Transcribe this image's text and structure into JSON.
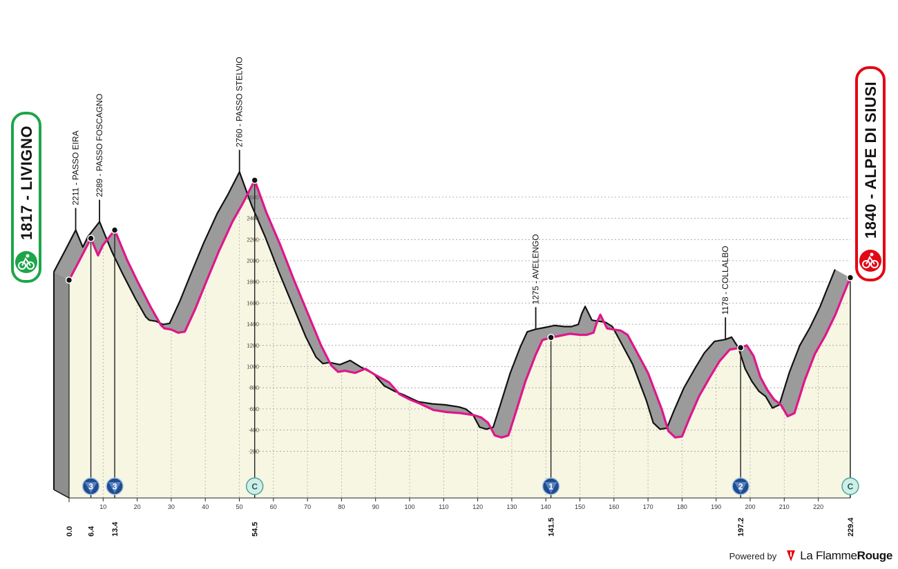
{
  "chart_data": {
    "type": "area",
    "title": "",
    "xlabel": "",
    "ylabel": "",
    "xlim": [
      0,
      229.4
    ],
    "ylim": [
      0,
      2800
    ],
    "grid": true,
    "y_ticks": [
      200,
      400,
      600,
      800,
      1000,
      1200,
      1400,
      1600,
      1800,
      2000,
      2200,
      2400,
      2600
    ],
    "x_ticks": [
      0,
      10,
      20,
      30,
      40,
      50,
      60,
      70,
      80,
      90,
      100,
      110,
      120,
      130,
      140,
      150,
      160,
      170,
      180,
      190,
      200,
      210,
      220
    ],
    "x_tick_labels": [
      "0",
      "10",
      "20",
      "30",
      "40",
      "50",
      "60",
      "70",
      "80",
      "90",
      "100",
      "110",
      "120",
      "130",
      "140",
      "150",
      "160",
      "170",
      "180",
      "190",
      "200",
      "210",
      "220"
    ],
    "start": {
      "name": "LIVIGNO",
      "elevation": "1817",
      "label": "1817 - LIVIGNO",
      "icon": "cyclist-start-icon",
      "color": "#1ea54a"
    },
    "finish": {
      "name": "ALPE DI SIUSI",
      "elevation": "1840",
      "label": "1840 - ALPE DI SIUSI",
      "icon": "cyclist-finish-icon",
      "color": "#e30613"
    },
    "climbs": [
      {
        "km": 6.4,
        "km_label": "6.4",
        "elevation": 2211,
        "label": "2211 - PASSO EIRA",
        "category": "3"
      },
      {
        "km": 13.4,
        "km_label": "13.4",
        "elevation": 2289,
        "label": "2289 - PASSO FOSCAGNO",
        "category": "3"
      },
      {
        "km": 54.5,
        "km_label": "54.5",
        "elevation": 2760,
        "label": "2760 - PASSO STELVIO",
        "category": "C"
      },
      {
        "km": 141.5,
        "km_label": "141.5",
        "elevation": 1275,
        "label": "1275 - AVELENGO",
        "category": "1"
      },
      {
        "km": 197.2,
        "km_label": "197.2",
        "elevation": 1178,
        "label": "1178 - COLLALBO",
        "category": "2"
      },
      {
        "km": 229.4,
        "km_label": "229.4",
        "elevation": 1840,
        "label": "",
        "category": "C"
      }
    ],
    "start_km_label": "0.0",
    "profile": {
      "km": [
        0,
        3,
        6.4,
        8.5,
        10,
        13.4,
        17,
        20,
        24,
        27,
        28,
        30,
        32,
        34,
        37,
        40,
        44,
        48,
        51,
        54.5,
        58,
        62,
        66,
        70,
        74,
        77,
        79,
        81,
        84,
        87,
        90,
        94,
        97,
        100,
        103,
        107,
        111,
        115,
        119,
        121,
        123,
        125,
        127,
        129,
        131,
        134,
        137,
        139,
        141.5,
        144,
        147,
        150,
        152,
        154,
        155,
        156,
        158,
        160,
        162,
        164,
        166,
        170,
        174,
        176,
        178,
        180,
        182,
        185,
        188,
        191,
        194,
        197.2,
        199,
        201,
        203,
        205,
        207,
        209,
        211,
        213,
        216,
        219,
        222,
        225,
        227,
        229.4
      ],
      "elevation": [
        1817,
        2000,
        2211,
        2050,
        2150,
        2289,
        2010,
        1810,
        1560,
        1390,
        1360,
        1350,
        1320,
        1330,
        1540,
        1780,
        2090,
        2370,
        2540,
        2760,
        2450,
        2150,
        1820,
        1510,
        1200,
        1010,
        950,
        960,
        940,
        980,
        920,
        850,
        740,
        690,
        650,
        590,
        570,
        560,
        540,
        520,
        470,
        350,
        330,
        350,
        550,
        860,
        1110,
        1250,
        1275,
        1290,
        1310,
        1300,
        1300,
        1320,
        1420,
        1490,
        1360,
        1350,
        1340,
        1300,
        1180,
        940,
        600,
        390,
        330,
        340,
        500,
        720,
        890,
        1050,
        1160,
        1178,
        1200,
        1100,
        900,
        780,
        690,
        640,
        530,
        560,
        870,
        1120,
        1290,
        1490,
        1650,
        1840
      ]
    }
  },
  "branding": {
    "powered_by": "Powered by",
    "brand_a": "La Flamme",
    "brand_b": "Rouge",
    "logo_icon": "flamme-rouge-flag-icon"
  }
}
